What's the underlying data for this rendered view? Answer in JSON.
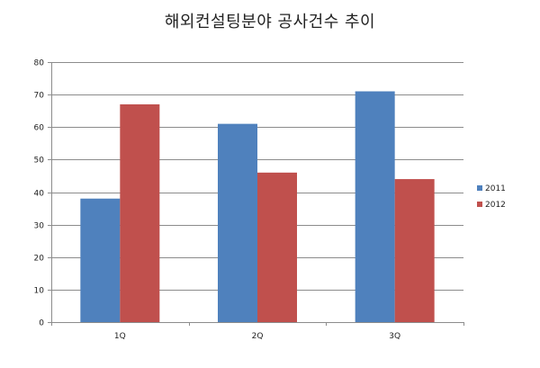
{
  "chart_data": {
    "type": "bar",
    "title": "해외컨설팅분야 공사건수 추이",
    "xlabel": "",
    "ylabel": "",
    "categories": [
      "1Q",
      "2Q",
      "3Q"
    ],
    "series": [
      {
        "name": "2011",
        "values": [
          38,
          61,
          71
        ],
        "color": "#4f81bd"
      },
      {
        "name": "2012",
        "values": [
          67,
          46,
          44
        ],
        "color": "#c0504d"
      }
    ],
    "ylim": [
      0,
      80
    ],
    "yticks": [
      0,
      10,
      20,
      30,
      40,
      50,
      60,
      70,
      80
    ],
    "grid": true,
    "legend": "right"
  }
}
